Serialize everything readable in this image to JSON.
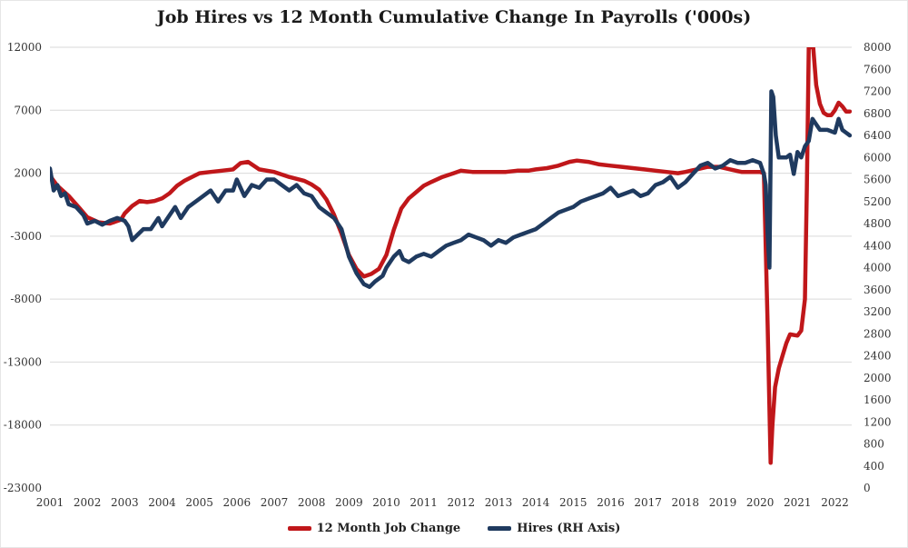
{
  "chart_data": {
    "type": "line",
    "title": "Job Hires vs 12 Month Cumulative Change In Payrolls ('000s)",
    "x_ticks": [
      "2001",
      "2002",
      "2003",
      "2004",
      "2005",
      "2006",
      "2007",
      "2008",
      "2009",
      "2010",
      "2011",
      "2012",
      "2013",
      "2014",
      "2015",
      "2016",
      "2017",
      "2018",
      "2019",
      "2020",
      "2021",
      "2022"
    ],
    "y_left": {
      "ticks": [
        "12000",
        "7000",
        "2000",
        "-3000",
        "-8000",
        "-13000",
        "-18000",
        "-23000"
      ],
      "min": -23000,
      "max": 12000
    },
    "y_right": {
      "ticks": [
        "8000",
        "7600",
        "7200",
        "6800",
        "6400",
        "6000",
        "5600",
        "5200",
        "4800",
        "4400",
        "4000",
        "3600",
        "3200",
        "2800",
        "2400",
        "2000",
        "1600",
        "1200",
        "800",
        "400",
        "0"
      ],
      "min": 0,
      "max": 8000
    },
    "grid": "horizontal",
    "legend_position": "bottom",
    "series": [
      {
        "name": "12 Month Job Change",
        "axis": "left",
        "color": "#c0171a",
        "points": [
          [
            2001.0,
            1800
          ],
          [
            2001.2,
            1000
          ],
          [
            2001.5,
            200
          ],
          [
            2001.8,
            -800
          ],
          [
            2002.0,
            -1500
          ],
          [
            2002.3,
            -1900
          ],
          [
            2002.6,
            -2000
          ],
          [
            2002.9,
            -1700
          ],
          [
            2003.0,
            -1200
          ],
          [
            2003.2,
            -600
          ],
          [
            2003.4,
            -200
          ],
          [
            2003.6,
            -300
          ],
          [
            2003.8,
            -200
          ],
          [
            2004.0,
            0
          ],
          [
            2004.2,
            400
          ],
          [
            2004.4,
            1000
          ],
          [
            2004.6,
            1400
          ],
          [
            2004.8,
            1700
          ],
          [
            2005.0,
            2000
          ],
          [
            2005.3,
            2100
          ],
          [
            2005.6,
            2200
          ],
          [
            2005.9,
            2300
          ],
          [
            2006.1,
            2800
          ],
          [
            2006.3,
            2900
          ],
          [
            2006.6,
            2300
          ],
          [
            2007.0,
            2100
          ],
          [
            2007.4,
            1700
          ],
          [
            2007.8,
            1400
          ],
          [
            2008.0,
            1100
          ],
          [
            2008.2,
            700
          ],
          [
            2008.4,
            -100
          ],
          [
            2008.6,
            -1300
          ],
          [
            2008.8,
            -2800
          ],
          [
            2009.0,
            -4500
          ],
          [
            2009.2,
            -5600
          ],
          [
            2009.4,
            -6200
          ],
          [
            2009.6,
            -6000
          ],
          [
            2009.8,
            -5600
          ],
          [
            2010.0,
            -4500
          ],
          [
            2010.2,
            -2500
          ],
          [
            2010.4,
            -800
          ],
          [
            2010.6,
            0
          ],
          [
            2010.8,
            500
          ],
          [
            2011.0,
            1000
          ],
          [
            2011.2,
            1300
          ],
          [
            2011.5,
            1700
          ],
          [
            2011.8,
            2000
          ],
          [
            2012.0,
            2200
          ],
          [
            2012.3,
            2100
          ],
          [
            2012.6,
            2100
          ],
          [
            2012.9,
            2100
          ],
          [
            2013.2,
            2100
          ],
          [
            2013.5,
            2200
          ],
          [
            2013.8,
            2200
          ],
          [
            2014.0,
            2300
          ],
          [
            2014.3,
            2400
          ],
          [
            2014.6,
            2600
          ],
          [
            2014.9,
            2900
          ],
          [
            2015.1,
            3000
          ],
          [
            2015.4,
            2900
          ],
          [
            2015.7,
            2700
          ],
          [
            2016.0,
            2600
          ],
          [
            2016.3,
            2500
          ],
          [
            2016.6,
            2400
          ],
          [
            2016.9,
            2300
          ],
          [
            2017.2,
            2200
          ],
          [
            2017.5,
            2100
          ],
          [
            2017.8,
            2000
          ],
          [
            2018.0,
            2100
          ],
          [
            2018.3,
            2300
          ],
          [
            2018.6,
            2500
          ],
          [
            2018.9,
            2500
          ],
          [
            2019.2,
            2300
          ],
          [
            2019.5,
            2100
          ],
          [
            2019.8,
            2100
          ],
          [
            2020.0,
            2100
          ],
          [
            2020.1,
            2000
          ],
          [
            2020.2,
            -10000
          ],
          [
            2020.28,
            -21000
          ],
          [
            2020.33,
            -18000
          ],
          [
            2020.4,
            -15000
          ],
          [
            2020.5,
            -13500
          ],
          [
            2020.6,
            -12500
          ],
          [
            2020.7,
            -11500
          ],
          [
            2020.8,
            -10800
          ],
          [
            2021.0,
            -10900
          ],
          [
            2021.1,
            -10500
          ],
          [
            2021.2,
            -8000
          ],
          [
            2021.25,
            800
          ],
          [
            2021.3,
            12000
          ],
          [
            2021.42,
            12000
          ],
          [
            2021.5,
            9000
          ],
          [
            2021.6,
            7500
          ],
          [
            2021.7,
            6800
          ],
          [
            2021.8,
            6600
          ],
          [
            2021.9,
            6600
          ],
          [
            2022.0,
            7000
          ],
          [
            2022.1,
            7600
          ],
          [
            2022.2,
            7300
          ],
          [
            2022.3,
            6900
          ],
          [
            2022.4,
            6900
          ]
        ]
      },
      {
        "name": "Hires (RH Axis)",
        "axis": "right",
        "color": "#1f3a5f",
        "points": [
          [
            2001.0,
            5800
          ],
          [
            2001.1,
            5400
          ],
          [
            2001.2,
            5500
          ],
          [
            2001.3,
            5300
          ],
          [
            2001.4,
            5350
          ],
          [
            2001.5,
            5150
          ],
          [
            2001.7,
            5100
          ],
          [
            2001.9,
            4950
          ],
          [
            2002.0,
            4800
          ],
          [
            2002.2,
            4850
          ],
          [
            2002.4,
            4780
          ],
          [
            2002.6,
            4850
          ],
          [
            2002.8,
            4900
          ],
          [
            2003.0,
            4850
          ],
          [
            2003.1,
            4750
          ],
          [
            2003.2,
            4500
          ],
          [
            2003.35,
            4600
          ],
          [
            2003.5,
            4700
          ],
          [
            2003.7,
            4700
          ],
          [
            2003.9,
            4900
          ],
          [
            2004.0,
            4750
          ],
          [
            2004.2,
            4950
          ],
          [
            2004.35,
            5100
          ],
          [
            2004.5,
            4900
          ],
          [
            2004.7,
            5100
          ],
          [
            2004.9,
            5200
          ],
          [
            2005.1,
            5300
          ],
          [
            2005.3,
            5400
          ],
          [
            2005.5,
            5200
          ],
          [
            2005.7,
            5400
          ],
          [
            2005.9,
            5400
          ],
          [
            2006.0,
            5600
          ],
          [
            2006.2,
            5300
          ],
          [
            2006.4,
            5500
          ],
          [
            2006.6,
            5450
          ],
          [
            2006.8,
            5600
          ],
          [
            2007.0,
            5600
          ],
          [
            2007.2,
            5500
          ],
          [
            2007.4,
            5400
          ],
          [
            2007.6,
            5500
          ],
          [
            2007.8,
            5350
          ],
          [
            2008.0,
            5300
          ],
          [
            2008.2,
            5100
          ],
          [
            2008.4,
            5000
          ],
          [
            2008.6,
            4900
          ],
          [
            2008.8,
            4700
          ],
          [
            2009.0,
            4200
          ],
          [
            2009.2,
            3900
          ],
          [
            2009.4,
            3700
          ],
          [
            2009.55,
            3650
          ],
          [
            2009.7,
            3750
          ],
          [
            2009.9,
            3850
          ],
          [
            2010.0,
            4000
          ],
          [
            2010.1,
            4100
          ],
          [
            2010.2,
            4200
          ],
          [
            2010.35,
            4300
          ],
          [
            2010.45,
            4150
          ],
          [
            2010.6,
            4100
          ],
          [
            2010.8,
            4200
          ],
          [
            2011.0,
            4250
          ],
          [
            2011.2,
            4200
          ],
          [
            2011.4,
            4300
          ],
          [
            2011.6,
            4400
          ],
          [
            2011.8,
            4450
          ],
          [
            2012.0,
            4500
          ],
          [
            2012.2,
            4600
          ],
          [
            2012.4,
            4550
          ],
          [
            2012.6,
            4500
          ],
          [
            2012.8,
            4400
          ],
          [
            2013.0,
            4500
          ],
          [
            2013.2,
            4450
          ],
          [
            2013.4,
            4550
          ],
          [
            2013.6,
            4600
          ],
          [
            2013.8,
            4650
          ],
          [
            2014.0,
            4700
          ],
          [
            2014.2,
            4800
          ],
          [
            2014.4,
            4900
          ],
          [
            2014.6,
            5000
          ],
          [
            2014.8,
            5050
          ],
          [
            2015.0,
            5100
          ],
          [
            2015.2,
            5200
          ],
          [
            2015.4,
            5250
          ],
          [
            2015.6,
            5300
          ],
          [
            2015.8,
            5350
          ],
          [
            2016.0,
            5450
          ],
          [
            2016.2,
            5300
          ],
          [
            2016.4,
            5350
          ],
          [
            2016.6,
            5400
          ],
          [
            2016.8,
            5300
          ],
          [
            2017.0,
            5350
          ],
          [
            2017.2,
            5500
          ],
          [
            2017.4,
            5550
          ],
          [
            2017.6,
            5650
          ],
          [
            2017.8,
            5450
          ],
          [
            2018.0,
            5550
          ],
          [
            2018.2,
            5700
          ],
          [
            2018.4,
            5850
          ],
          [
            2018.6,
            5900
          ],
          [
            2018.8,
            5800
          ],
          [
            2019.0,
            5850
          ],
          [
            2019.2,
            5950
          ],
          [
            2019.4,
            5900
          ],
          [
            2019.6,
            5900
          ],
          [
            2019.8,
            5950
          ],
          [
            2020.0,
            5900
          ],
          [
            2020.1,
            5700
          ],
          [
            2020.15,
            5500
          ],
          [
            2020.2,
            4600
          ],
          [
            2020.25,
            4000
          ],
          [
            2020.3,
            7200
          ],
          [
            2020.35,
            7100
          ],
          [
            2020.42,
            6400
          ],
          [
            2020.5,
            6000
          ],
          [
            2020.6,
            6000
          ],
          [
            2020.7,
            6000
          ],
          [
            2020.8,
            6050
          ],
          [
            2020.9,
            5700
          ],
          [
            2021.0,
            6100
          ],
          [
            2021.1,
            6000
          ],
          [
            2021.2,
            6200
          ],
          [
            2021.3,
            6300
          ],
          [
            2021.4,
            6700
          ],
          [
            2021.5,
            6600
          ],
          [
            2021.6,
            6500
          ],
          [
            2021.8,
            6500
          ],
          [
            2022.0,
            6450
          ],
          [
            2022.1,
            6700
          ],
          [
            2022.2,
            6500
          ],
          [
            2022.3,
            6450
          ],
          [
            2022.4,
            6400
          ]
        ]
      }
    ]
  }
}
